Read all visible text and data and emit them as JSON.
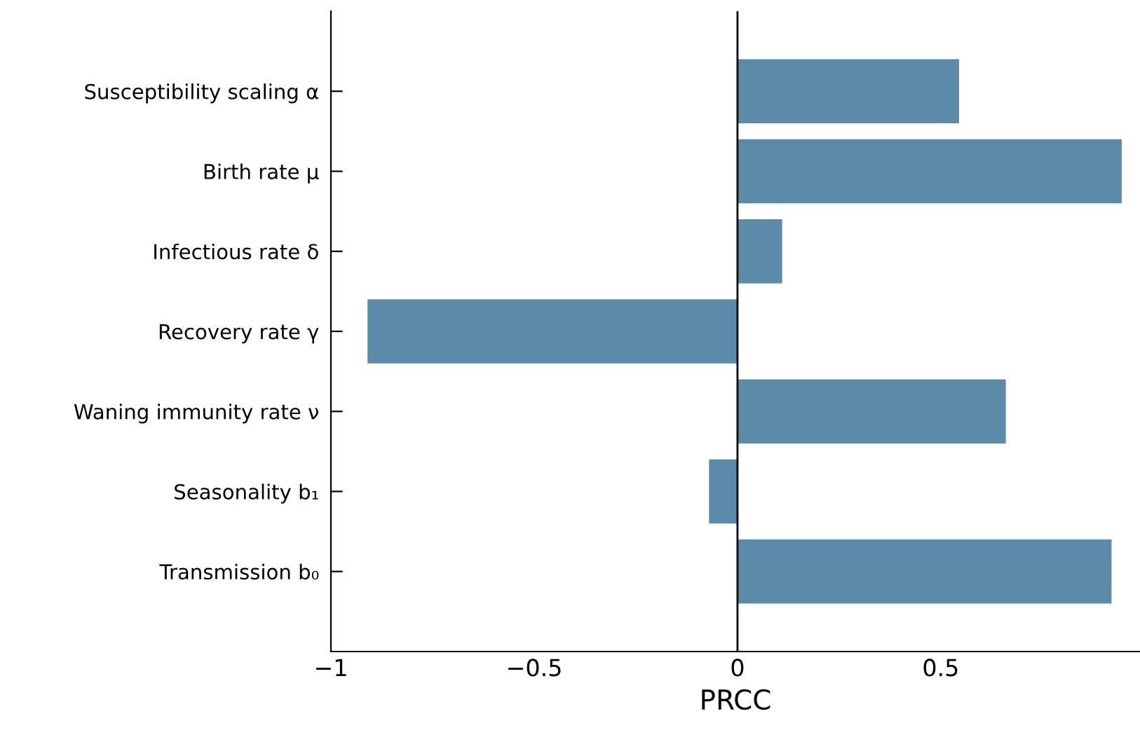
{
  "chart_data": {
    "type": "bar",
    "orientation": "horizontal",
    "xlabel": "PRCC",
    "categories": [
      "Susceptibility scaling α",
      "Birth rate μ",
      "Infectious rate δ",
      "Recovery rate γ",
      "Waning immunity rate ν",
      "Seasonality b₁",
      "Transmission b₀"
    ],
    "values": [
      0.545,
      0.945,
      0.11,
      -0.91,
      0.66,
      -0.07,
      0.92
    ],
    "color": "#5b8aab",
    "xlim": [
      -1,
      0.99
    ],
    "xticks": [
      {
        "value": -1,
        "label": "−1"
      },
      {
        "value": -0.5,
        "label": "−0.5"
      },
      0,
      0.5
    ],
    "ref_lines": [
      {
        "axis": "x",
        "value": 0,
        "color": "#000000"
      }
    ],
    "grid": false,
    "legend": false
  }
}
